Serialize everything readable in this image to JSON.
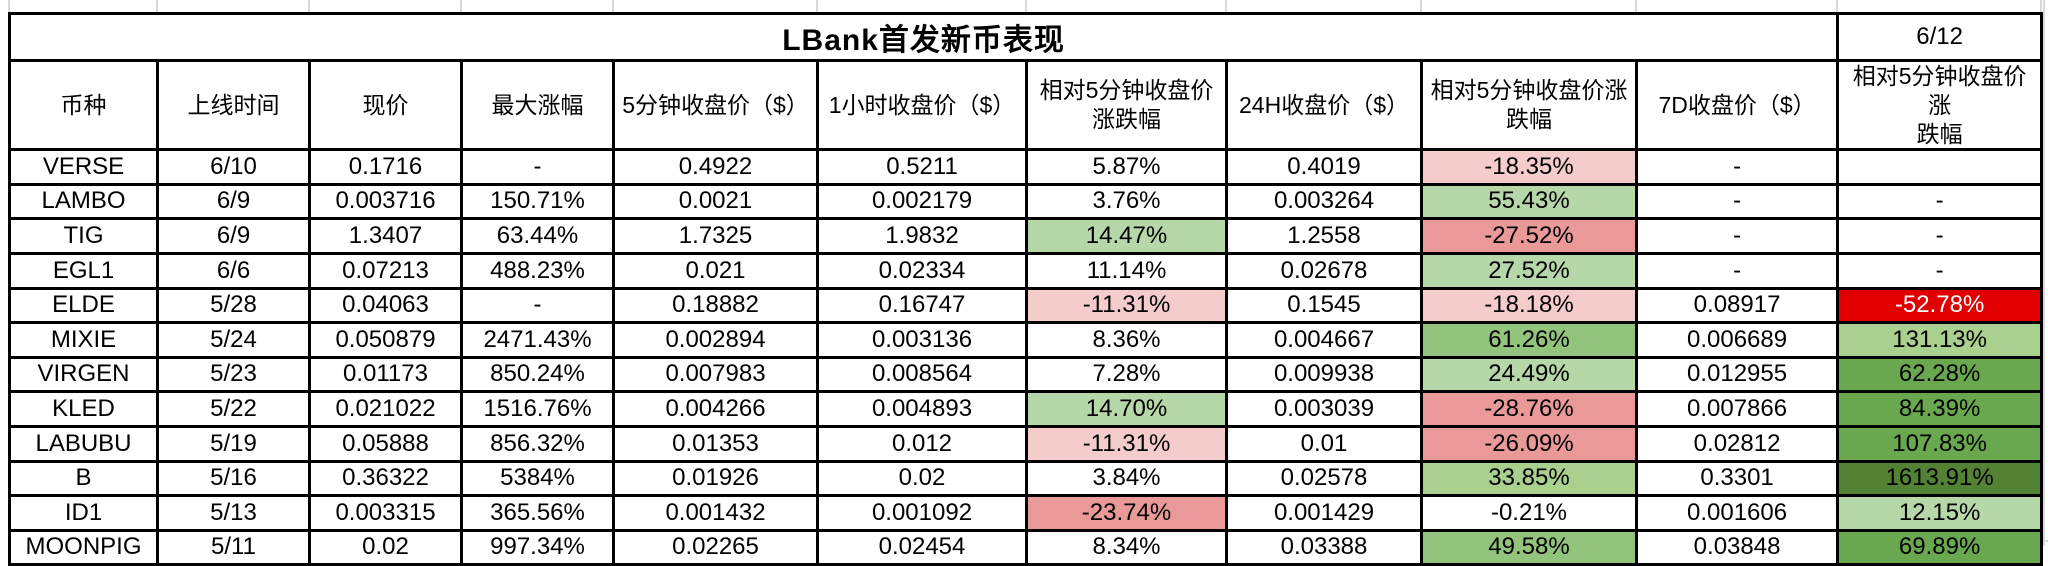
{
  "sheet": {
    "title": "LBank首发新币表现",
    "date": "6/12"
  },
  "palette": {
    "green_light": "#b6d7a8",
    "green_mid": "#93c47d",
    "green_mid2": "#a9d08e",
    "green_dark": "#6aa84f",
    "green_darker": "#548235",
    "red_light": "#f4cccc",
    "red_mid": "#ea9999",
    "red_bright": "#e00000"
  },
  "table": {
    "headers": [
      "币种",
      "上线时间",
      "现价",
      "最大涨幅",
      "5分钟收盘价（$）",
      "1小时收盘价（$）",
      "相对5分钟收盘价\n涨跌幅",
      "24H收盘价（$）",
      "相对5分钟收盘价涨\n跌幅",
      "7D收盘价（$）",
      "相对5分钟收盘价涨\n跌幅"
    ],
    "rows": [
      {
        "cells": [
          "VERSE",
          "6/10",
          "0.1716",
          "-",
          "0.4922",
          "0.5211",
          "5.87%",
          "0.4019",
          "-18.35%",
          "-",
          ""
        ],
        "bg": {
          "8": "red_light"
        }
      },
      {
        "cells": [
          "LAMBO",
          "6/9",
          "0.003716",
          "150.71%",
          "0.0021",
          "0.002179",
          "3.76%",
          "0.003264",
          "55.43%",
          "-",
          "-"
        ],
        "bg": {
          "8": "green_light"
        }
      },
      {
        "cells": [
          "TIG",
          "6/9",
          "1.3407",
          "63.44%",
          "1.7325",
          "1.9832",
          "14.47%",
          "1.2558",
          "-27.52%",
          "-",
          "-"
        ],
        "bg": {
          "6": "green_light",
          "8": "red_mid"
        }
      },
      {
        "cells": [
          "EGL1",
          "6/6",
          "0.07213",
          "488.23%",
          "0.021",
          "0.02334",
          "11.14%",
          "0.02678",
          "27.52%",
          "-",
          "-"
        ],
        "bg": {
          "8": "green_light"
        }
      },
      {
        "cells": [
          "ELDE",
          "5/28",
          "0.04063",
          "-",
          "0.18882",
          "0.16747",
          "-11.31%",
          "0.1545",
          "-18.18%",
          "0.08917",
          "-52.78%"
        ],
        "bg": {
          "6": "red_light",
          "8": "red_light",
          "10": "red_bright"
        },
        "fg": {
          "10": "#ffffff"
        }
      },
      {
        "cells": [
          "MIXIE",
          "5/24",
          "0.050879",
          "2471.43%",
          "0.002894",
          "0.003136",
          "8.36%",
          "0.004667",
          "61.26%",
          "0.006689",
          "131.13%"
        ],
        "bg": {
          "8": "green_mid",
          "10": "green_mid2"
        }
      },
      {
        "cells": [
          "VIRGEN",
          "5/23",
          "0.01173",
          "850.24%",
          "0.007983",
          "0.008564",
          "7.28%",
          "0.009938",
          "24.49%",
          "0.012955",
          "62.28%"
        ],
        "bg": {
          "8": "green_light",
          "10": "green_dark"
        }
      },
      {
        "cells": [
          "KLED",
          "5/22",
          "0.021022",
          "1516.76%",
          "0.004266",
          "0.004893",
          "14.70%",
          "0.003039",
          "-28.76%",
          "0.007866",
          "84.39%"
        ],
        "bg": {
          "6": "green_light",
          "8": "red_mid",
          "10": "green_dark"
        }
      },
      {
        "cells": [
          "LABUBU",
          "5/19",
          "0.05888",
          "856.32%",
          "0.01353",
          "0.012",
          "-11.31%",
          "0.01",
          "-26.09%",
          "0.02812",
          "107.83%"
        ],
        "bg": {
          "6": "red_light",
          "8": "red_mid",
          "10": "green_dark"
        }
      },
      {
        "cells": [
          "B",
          "5/16",
          "0.36322",
          "5384%",
          "0.01926",
          "0.02",
          "3.84%",
          "0.02578",
          "33.85%",
          "0.3301",
          "1613.91%"
        ],
        "bg": {
          "8": "green_mid2",
          "10": "green_darker"
        }
      },
      {
        "cells": [
          "ID1",
          "5/13",
          "0.003315",
          "365.56%",
          "0.001432",
          "0.001092",
          "-23.74%",
          "0.001429",
          "-0.21%",
          "0.001606",
          "12.15%"
        ],
        "bg": {
          "6": "red_mid",
          "10": "green_light"
        }
      },
      {
        "cells": [
          "MOONPIG",
          "5/11",
          "0.02",
          "997.34%",
          "0.02265",
          "0.02454",
          "8.34%",
          "0.03388",
          "49.58%",
          "0.03848",
          "69.89%"
        ],
        "bg": {
          "8": "green_mid",
          "10": "green_dark"
        }
      }
    ]
  }
}
